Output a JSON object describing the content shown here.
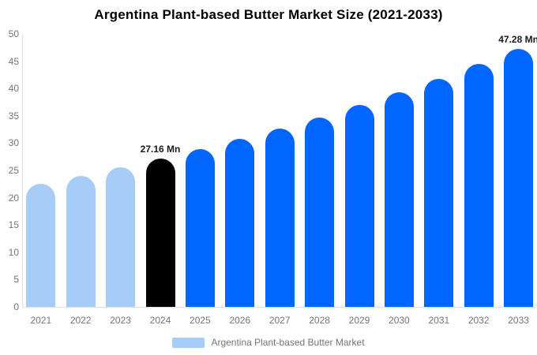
{
  "title": "Argentina Plant-based Butter Market Size (2021-2033)",
  "colors": {
    "background": "#ffffff",
    "title_text": "#000000",
    "tick_text": "#757575",
    "axis_line": "#e0e0e0",
    "value_label_text": "#1a1a1a"
  },
  "legend": {
    "label": "Argentina Plant-based Butter Market",
    "swatch_color": "#a5cdf8"
  },
  "chart_data": {
    "type": "bar",
    "title": "Argentina Plant-based Butter Market Size (2021-2033)",
    "xlabel": "",
    "ylabel": "",
    "unit": "Mn",
    "categories": [
      "2021",
      "2022",
      "2023",
      "2024",
      "2025",
      "2026",
      "2027",
      "2028",
      "2029",
      "2030",
      "2031",
      "2032",
      "2033"
    ],
    "values": [
      22.58,
      24.02,
      25.54,
      27.16,
      28.89,
      30.72,
      32.67,
      34.75,
      36.95,
      39.3,
      41.79,
      44.45,
      47.28
    ],
    "value_labels": [
      "",
      "",
      "",
      "27.16 Mn",
      "",
      "",
      "",
      "",
      "",
      "",
      "",
      "",
      "47.28 Mn"
    ],
    "bar_color_keys": [
      "historical",
      "historical",
      "historical",
      "base_year",
      "forecast",
      "forecast",
      "forecast",
      "forecast",
      "forecast",
      "forecast",
      "forecast",
      "forecast",
      "forecast"
    ],
    "palette": {
      "historical": "#a5cdf8",
      "base_year": "#000000",
      "forecast": "#0066ff"
    },
    "ylim": [
      0,
      50
    ],
    "yticks": [
      0,
      5,
      10,
      15,
      20,
      25,
      30,
      35,
      40,
      45,
      50
    ],
    "grid": false,
    "legend_position": "bottom",
    "legend_entries": [
      "Argentina Plant-based Butter Market"
    ]
  }
}
